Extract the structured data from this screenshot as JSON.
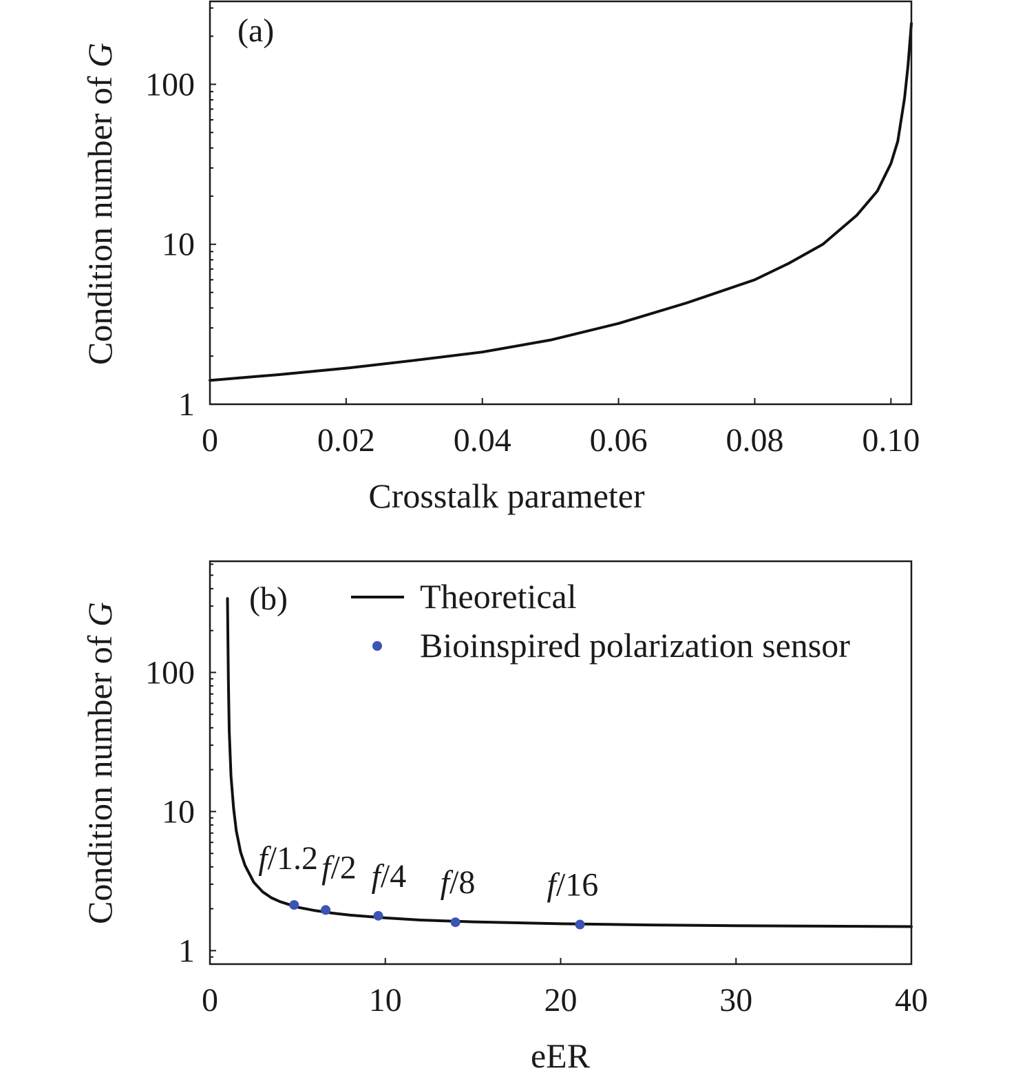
{
  "chart_data": [
    {
      "panel": "(a)",
      "type": "line",
      "xlabel": "Crosstalk parameter",
      "ylabel_parts": [
        "Condition number of ",
        "G"
      ],
      "xlim": [
        0,
        0.103
      ],
      "ylim": [
        1,
        330
      ],
      "yscale": "log",
      "xticks": [
        0,
        0.02,
        0.04,
        0.06,
        0.08,
        0.1
      ],
      "xtick_labels": [
        "0",
        "0.02",
        "0.04",
        "0.06",
        "0.08",
        "0.10"
      ],
      "yticks": [
        1,
        10,
        100
      ],
      "ytick_labels": [
        "1",
        "10",
        "100"
      ],
      "grid": false,
      "series": [
        {
          "x": [
            0,
            0.01,
            0.02,
            0.03,
            0.04,
            0.05,
            0.06,
            0.07,
            0.08,
            0.085,
            0.09,
            0.095,
            0.098,
            0.1,
            0.101,
            0.102,
            0.1025,
            0.103
          ],
          "y": [
            1.41,
            1.53,
            1.68,
            1.88,
            2.12,
            2.52,
            3.2,
            4.3,
            6.0,
            7.6,
            10.0,
            15.2,
            21.5,
            32.0,
            44.0,
            82.0,
            130.0,
            240.0
          ]
        }
      ]
    },
    {
      "panel": "(b)",
      "type": "line+scatter",
      "xlabel": "eER",
      "ylabel_parts": [
        "Condition number of ",
        "G"
      ],
      "xlim": [
        0,
        40
      ],
      "ylim": [
        0.8,
        630
      ],
      "yscale": "log",
      "xticks": [
        0,
        10,
        20,
        30,
        40
      ],
      "xtick_labels": [
        "0",
        "10",
        "20",
        "30",
        "40"
      ],
      "yticks": [
        1,
        10,
        100
      ],
      "ytick_labels": [
        "1",
        "10",
        "100"
      ],
      "grid": false,
      "legend_position": "top-right",
      "series": [
        {
          "name": "Theoretical",
          "kind": "line",
          "x": [
            1.0,
            1.05,
            1.1,
            1.2,
            1.35,
            1.5,
            1.75,
            2.0,
            2.5,
            3.0,
            3.5,
            4.0,
            5.0,
            6.0,
            7.0,
            8.0,
            10.0,
            12.0,
            15.0,
            20.0,
            25.0,
            30.0,
            35.0,
            40.0
          ],
          "y": [
            340,
            90,
            38,
            18,
            10.5,
            7.3,
            5.1,
            4.1,
            3.1,
            2.65,
            2.4,
            2.25,
            2.05,
            1.94,
            1.86,
            1.8,
            1.72,
            1.66,
            1.61,
            1.56,
            1.53,
            1.51,
            1.5,
            1.49
          ]
        },
        {
          "name": "Bioinspired polarization sensor",
          "kind": "scatter",
          "color": "#3a55b4",
          "points": [
            {
              "x": 4.8,
              "y": 2.13,
              "label_italic": "f",
              "label_rest": "/1.2"
            },
            {
              "x": 6.6,
              "y": 1.96,
              "label_italic": "f",
              "label_rest": "/2"
            },
            {
              "x": 9.6,
              "y": 1.78,
              "label_italic": "f",
              "label_rest": "/4"
            },
            {
              "x": 14.0,
              "y": 1.6,
              "label_italic": "f",
              "label_rest": "/8"
            },
            {
              "x": 21.1,
              "y": 1.54,
              "label_italic": "f",
              "label_rest": "/16"
            }
          ]
        }
      ]
    }
  ]
}
